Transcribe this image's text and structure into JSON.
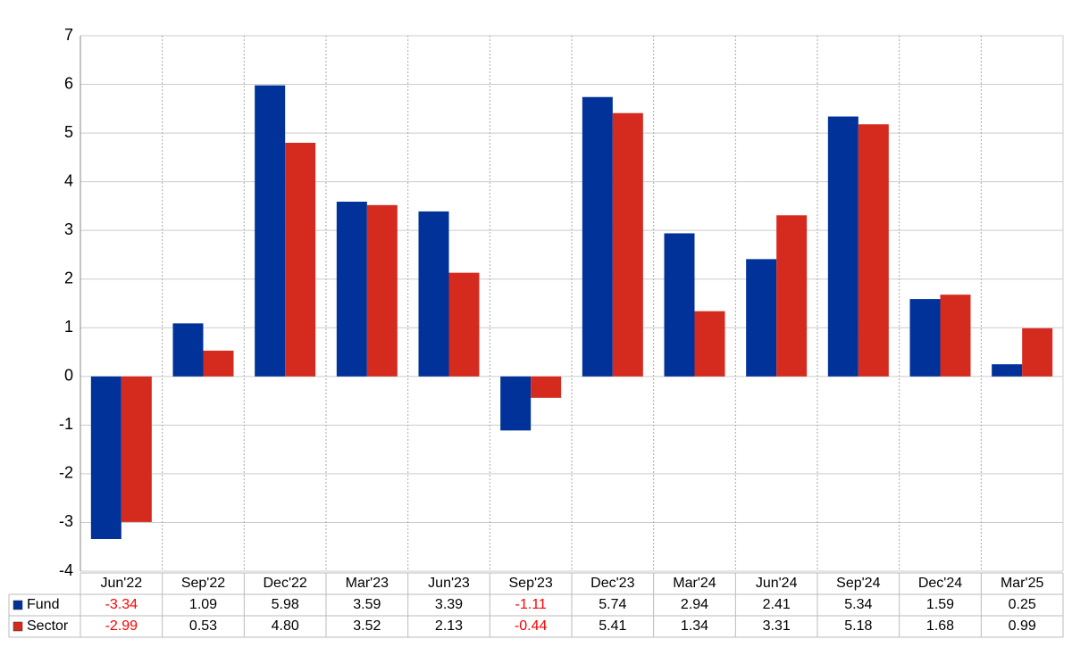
{
  "chart_data": {
    "type": "bar",
    "categories": [
      "Jun'22",
      "Sep'22",
      "Dec'22",
      "Mar'23",
      "Jun'23",
      "Sep'23",
      "Dec'23",
      "Mar'24",
      "Jun'24",
      "Sep'24",
      "Dec'24",
      "Mar'25"
    ],
    "series": [
      {
        "name": "Fund",
        "color": "#003299",
        "values": [
          -3.34,
          1.09,
          5.98,
          3.59,
          3.39,
          -1.11,
          5.74,
          2.94,
          2.41,
          5.34,
          1.59,
          0.25
        ],
        "value_labels": [
          "-3.34",
          "1.09",
          "5.98",
          "3.59",
          "3.39",
          "-1.11",
          "5.74",
          "2.94",
          "2.41",
          "5.34",
          "1.59",
          "0.25"
        ]
      },
      {
        "name": "Sector",
        "color": "#d52b1e",
        "values": [
          -2.99,
          0.53,
          4.8,
          3.52,
          2.13,
          -0.44,
          5.41,
          1.34,
          3.31,
          5.18,
          1.68,
          0.99
        ],
        "value_labels": [
          "-2.99",
          "0.53",
          "4.80",
          "3.52",
          "2.13",
          "-0.44",
          "5.41",
          "1.34",
          "3.31",
          "5.18",
          "1.68",
          "0.99"
        ]
      }
    ],
    "ylim": [
      -4,
      7
    ],
    "yticks": [
      -4,
      -3,
      -2,
      -1,
      0,
      1,
      2,
      3,
      4,
      5,
      6,
      7
    ],
    "grid": true,
    "negative_label_color": "#ff0000"
  }
}
